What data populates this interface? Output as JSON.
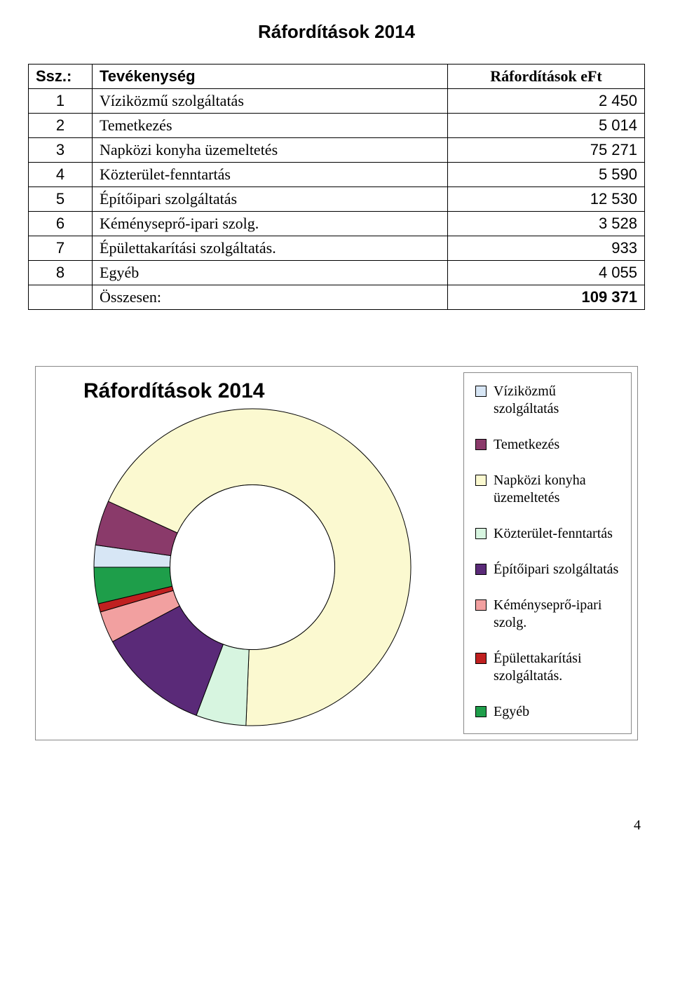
{
  "page_title": "Ráfordítások  2014",
  "table": {
    "columns": {
      "ssz": "Ssz.:",
      "activity": "Tevékenység",
      "value": "Ráfordítások  eFt"
    },
    "rows": [
      {
        "n": "1",
        "activity": "Víziközmű szolgáltatás",
        "value": "2 450"
      },
      {
        "n": "2",
        "activity": "Temetkezés",
        "value": "5 014"
      },
      {
        "n": "3",
        "activity": "Napközi konyha üzemeltetés",
        "value": "75 271"
      },
      {
        "n": "4",
        "activity": "Közterület-fenntartás",
        "value": "5 590"
      },
      {
        "n": "5",
        "activity": "Építőipari szolgáltatás",
        "value": "12 530"
      },
      {
        "n": "6",
        "activity": "Kéményseprő-ipari szolg.",
        "value": "3 528"
      },
      {
        "n": "7",
        "activity": "Épülettakarítási szolgáltatás.",
        "value": "933"
      },
      {
        "n": "8",
        "activity": "Egyéb",
        "value": "4 055"
      }
    ],
    "total_label": "Összesen:",
    "total_value": "109 371"
  },
  "chart": {
    "type": "doughnut",
    "title": "Ráfordítások 2014",
    "background_color": "#ffffff",
    "border_color": "#888888",
    "size": 460,
    "inner_ratio": 0.52,
    "slice_stroke": "#000000",
    "slice_stroke_width": 1,
    "series": [
      {
        "label": "Víziközmű szolgáltatás",
        "value": 2450,
        "color": "#d7e6f5"
      },
      {
        "label": "Temetkezés",
        "value": 5014,
        "color": "#8a3a6a"
      },
      {
        "label": "Napközi konyha üzemeltetés",
        "value": 75271,
        "color": "#fbf9d0"
      },
      {
        "label": "Közterület-fenntartás",
        "value": 5590,
        "color": "#d7f5e0"
      },
      {
        "label": "Építőipari szolgáltatás",
        "value": 12530,
        "color": "#5a2a78"
      },
      {
        "label": "Kéményseprő-ipari szolg.",
        "value": 3528,
        "color": "#f2a0a0"
      },
      {
        "label": "Épülettakarítási szolgáltatás.",
        "value": 933,
        "color": "#c02020"
      },
      {
        "label": "Egyéb",
        "value": 4055,
        "color": "#1e9e4a"
      }
    ],
    "start_angle_deg": 180
  },
  "legend_labels": [
    "Víziközmű szolgáltatás",
    "Temetkezés",
    "Napközi konyha üzemeltetés",
    "Közterület-fenntartás",
    "Építőipari szolgáltatás",
    "Kéményseprő-ipari szolg.",
    "Épülettakarítási szolgáltatás.",
    "Egyéb"
  ],
  "page_number": "4"
}
